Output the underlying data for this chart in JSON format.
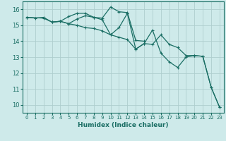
{
  "title": "",
  "xlabel": "Humidex (Indice chaleur)",
  "ylabel": "",
  "xlim": [
    -0.5,
    23.5
  ],
  "ylim": [
    9.5,
    16.5
  ],
  "yticks": [
    10,
    11,
    12,
    13,
    14,
    15,
    16
  ],
  "xticks": [
    0,
    1,
    2,
    3,
    4,
    5,
    6,
    7,
    8,
    9,
    10,
    11,
    12,
    13,
    14,
    15,
    16,
    17,
    18,
    19,
    20,
    21,
    22,
    23
  ],
  "bg_color": "#ceeaea",
  "grid_color": "#aecece",
  "line_color": "#1a6e64",
  "lines": [
    {
      "x": [
        0,
        1,
        2,
        3,
        4,
        5,
        6,
        7,
        8,
        9,
        10,
        11,
        12,
        13,
        14
      ],
      "y": [
        15.5,
        15.45,
        15.5,
        15.2,
        15.25,
        15.55,
        15.75,
        15.75,
        15.5,
        15.45,
        16.15,
        15.85,
        15.8,
        14.05,
        14.0
      ]
    },
    {
      "x": [
        0,
        2,
        3,
        4,
        5,
        6,
        7,
        8,
        9,
        10,
        11,
        12,
        13,
        14,
        15,
        16,
        17,
        18,
        19,
        20,
        21,
        22,
        23
      ],
      "y": [
        15.5,
        15.45,
        15.2,
        15.25,
        15.1,
        15.4,
        15.6,
        15.5,
        15.35,
        14.4,
        14.85,
        15.75,
        13.5,
        13.85,
        14.7,
        13.25,
        12.7,
        12.35,
        13.0,
        13.1,
        13.05,
        11.1,
        9.85
      ]
    },
    {
      "x": [
        3,
        4,
        5,
        6,
        7,
        8,
        9,
        10,
        11,
        12,
        13,
        14,
        15,
        16,
        17,
        18,
        19,
        20,
        21,
        22,
        23
      ],
      "y": [
        15.2,
        15.25,
        15.1,
        15.0,
        14.85,
        14.8,
        14.65,
        14.4,
        14.25,
        14.1,
        13.5,
        13.85,
        13.8,
        14.4,
        13.8,
        13.6,
        13.1,
        13.1,
        13.05,
        11.1,
        9.85
      ]
    }
  ]
}
